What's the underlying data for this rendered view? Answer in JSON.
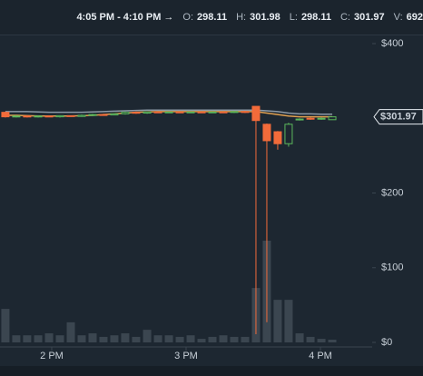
{
  "header": {
    "range": "4:05 PM - 4:10 PM →",
    "fields": [
      {
        "label": "O:",
        "value": 298.11
      },
      {
        "label": "H:",
        "value": 301.98
      },
      {
        "label": "L:",
        "value": 298.11
      },
      {
        "label": "C:",
        "value": 301.97
      },
      {
        "label": "V:",
        "value": 692
      }
    ]
  },
  "chart_data": {
    "type": "candlestick",
    "x": [
      13.655,
      13.736,
      13.817,
      13.899,
      13.98,
      14.061,
      14.142,
      14.223,
      14.304,
      14.385,
      14.466,
      14.547,
      14.628,
      14.71,
      14.791,
      14.872,
      14.953,
      15.034,
      15.115,
      15.196,
      15.277,
      15.358,
      15.439,
      15.52,
      15.601,
      15.682,
      15.763,
      15.845,
      15.926,
      16.007,
      16.088
    ],
    "open": [
      308,
      302,
      303,
      302,
      303,
      302,
      303.5,
      302.5,
      304,
      305,
      304.5,
      306,
      308,
      307,
      308.5,
      307.5,
      308.5,
      307.5,
      308.5,
      308,
      308.5,
      308,
      309,
      316,
      292,
      282,
      266,
      298,
      300,
      299,
      298.11
    ],
    "high": [
      309,
      304,
      304,
      304,
      304,
      304,
      304,
      305,
      306,
      306,
      307,
      309,
      309,
      309,
      309,
      309,
      309,
      309,
      309,
      309,
      309,
      309.5,
      310,
      316,
      293,
      283,
      294,
      300,
      301,
      301,
      301.98
    ],
    "low": [
      301,
      301,
      301,
      301,
      302,
      301,
      302,
      302,
      303,
      304,
      304,
      305,
      306,
      306,
      307,
      307,
      307,
      307,
      307,
      307,
      307,
      307,
      307,
      11,
      27,
      258,
      262,
      297,
      298,
      298,
      298.11
    ],
    "close": [
      302,
      303,
      302,
      303,
      302.5,
      303.5,
      302.5,
      304,
      305,
      304.5,
      306,
      308,
      307,
      308.5,
      307.5,
      308.5,
      307.5,
      308.5,
      308,
      308.5,
      308,
      309,
      308,
      297,
      270,
      266,
      292,
      299,
      299.5,
      300,
      301.97
    ],
    "volume": [
      8500,
      1800,
      1800,
      1800,
      2300,
      1800,
      5100,
      1800,
      2300,
      1400,
      1800,
      2300,
      1400,
      3200,
      1800,
      1800,
      1400,
      1800,
      900,
      1400,
      1800,
      1400,
      1400,
      13800,
      25800,
      10800,
      10800,
      2300,
      1400,
      900,
      692
    ],
    "overlays": [
      {
        "color": "#8c99a6",
        "values": [
          309,
          309,
          309,
          308.5,
          308,
          308,
          308,
          308,
          308.5,
          309,
          309.5,
          310,
          310.5,
          311,
          311,
          311,
          311,
          311,
          311,
          311,
          311,
          311,
          311,
          311,
          310,
          309,
          307,
          306,
          306,
          305.5,
          305.5
        ]
      },
      {
        "color": "#e0a050",
        "values": [
          304,
          304,
          303.5,
          303,
          303,
          303,
          303,
          303.5,
          304,
          305,
          306,
          307,
          308,
          308.5,
          309,
          309,
          309,
          309,
          309,
          309,
          309,
          309,
          309,
          309,
          307,
          305,
          303,
          302,
          302,
          302,
          302
        ]
      }
    ],
    "up_color": "#5cb85c",
    "down_color": "#f26b3a",
    "volume_color": "#3b4650",
    "last_price": {
      "value": 301.97,
      "label": "$301.97"
    },
    "xlim": [
      13.615,
      16.385
    ],
    "xticks": [
      {
        "value": 14,
        "label": "2 PM"
      },
      {
        "value": 15,
        "label": "3 PM"
      },
      {
        "value": 16,
        "label": "4 PM"
      }
    ],
    "ylim": [
      0,
      400
    ],
    "yticks": [
      {
        "value": 0,
        "label": "$0"
      },
      {
        "value": 100,
        "label": "$100"
      },
      {
        "value": 200,
        "label": "$200"
      },
      {
        "value": 400,
        "label": "$400"
      }
    ],
    "grid": false
  }
}
